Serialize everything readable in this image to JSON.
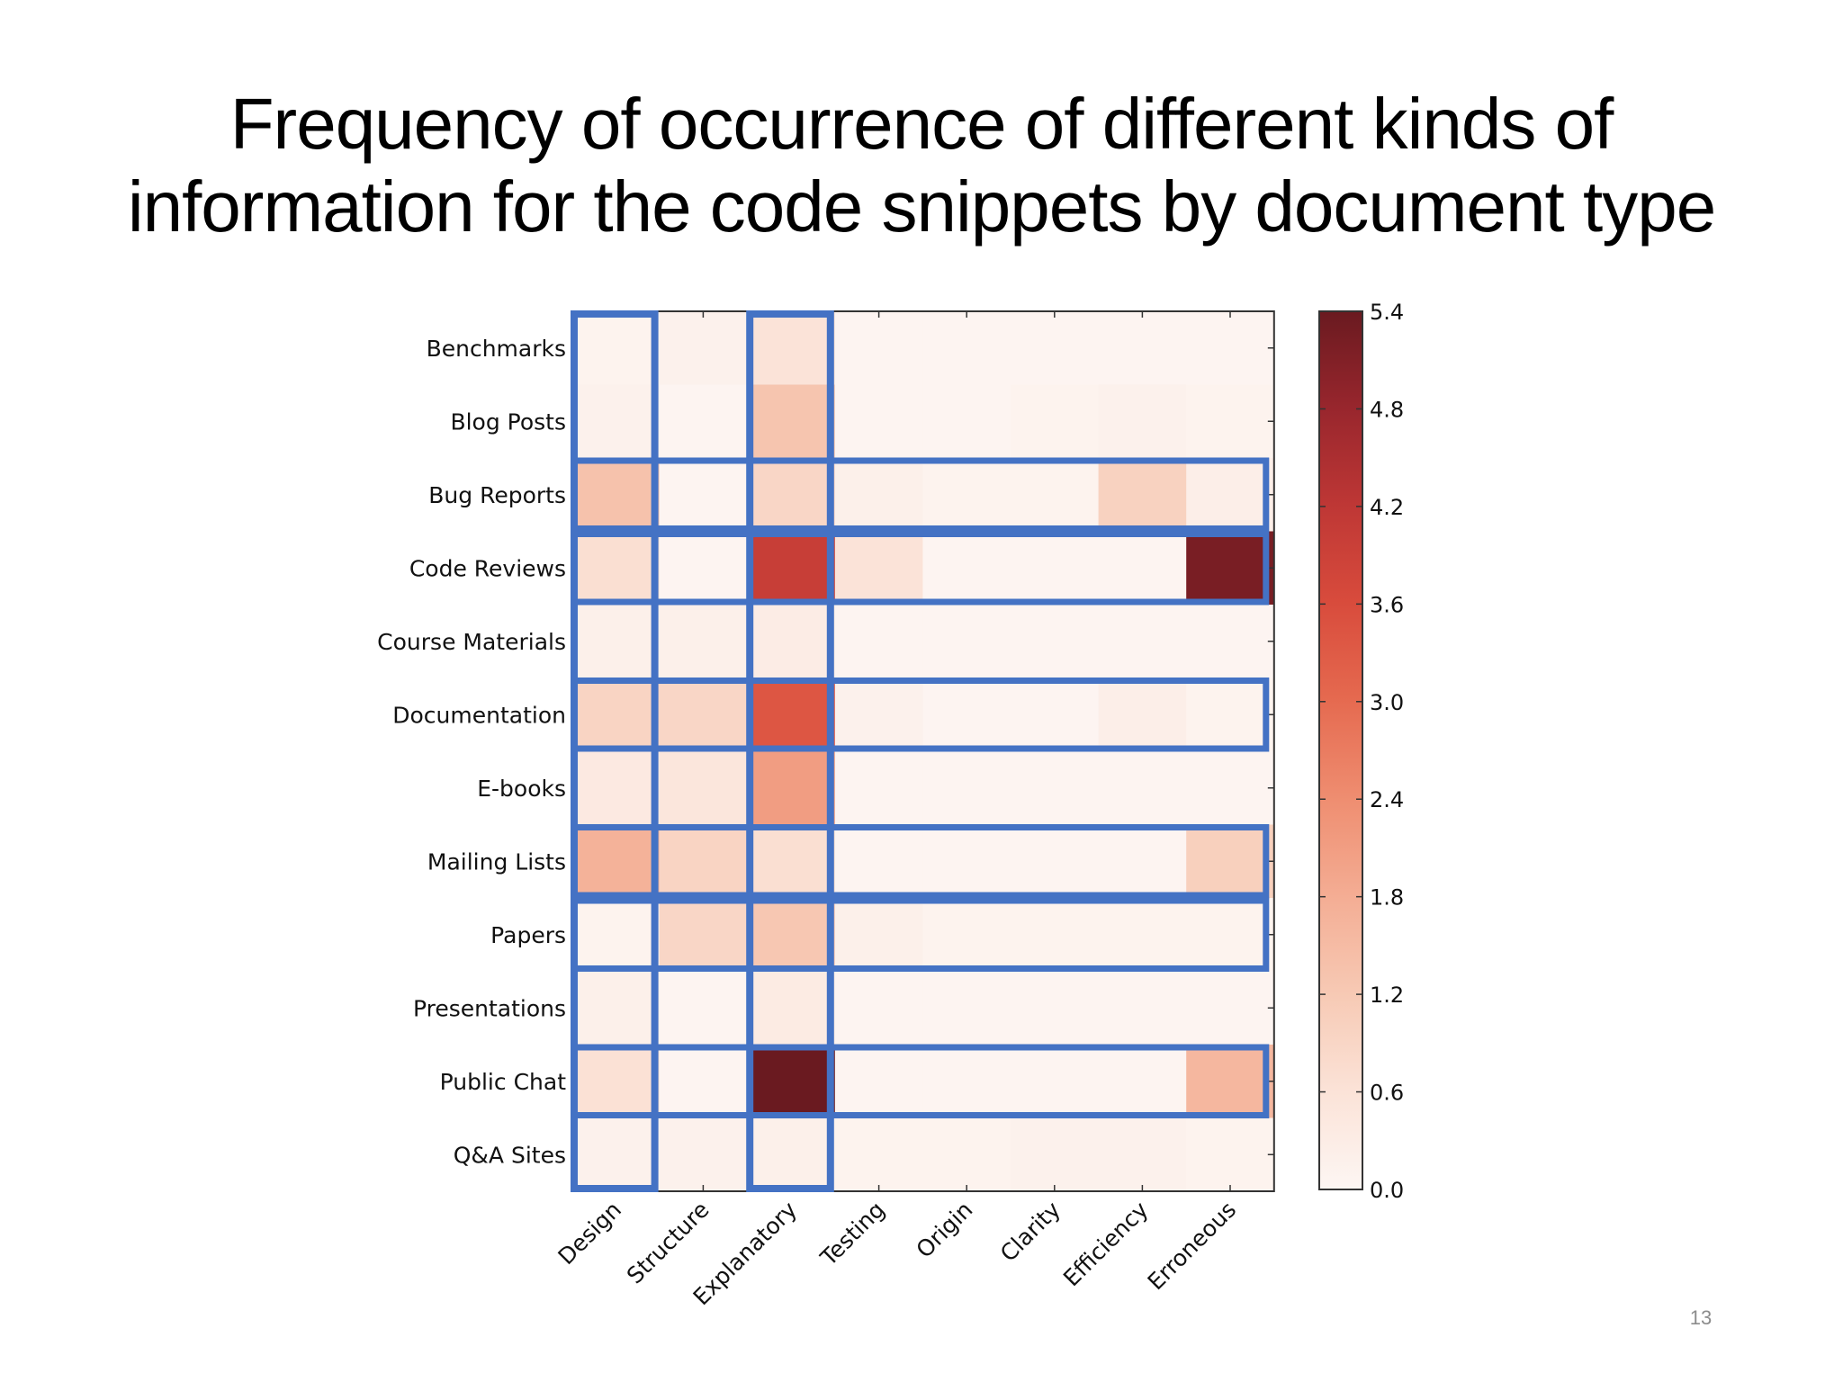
{
  "slide": {
    "title_line1": "Frequency of occurrence of different kinds of",
    "title_line2": "information for the code snippets by document type",
    "page_number": "13"
  },
  "colors": {
    "highlight_box": "#4472c4",
    "colormap_low": "#fdf6f3",
    "colormap_high": "#67000d"
  },
  "chart_data": {
    "type": "heatmap",
    "title": "",
    "xlabel": "",
    "ylabel": "",
    "rows": [
      "Benchmarks",
      "Blog Posts",
      "Bug Reports",
      "Code Reviews",
      "Course Materials",
      "Documentation",
      "E-books",
      "Mailing Lists",
      "Papers",
      "Presentations",
      "Public Chat",
      "Q&A Sites"
    ],
    "columns": [
      "Design",
      "Structure",
      "Explanatory",
      "Testing",
      "Origin",
      "Clarity",
      "Efficiency",
      "Erroneous"
    ],
    "values": [
      [
        0.1,
        0.15,
        0.6,
        0.05,
        0.05,
        0.05,
        0.05,
        0.05
      ],
      [
        0.15,
        0.05,
        1.3,
        0.05,
        0.05,
        0.1,
        0.15,
        0.1
      ],
      [
        1.35,
        0.05,
        0.9,
        0.2,
        0.1,
        0.1,
        1.0,
        0.25
      ],
      [
        0.7,
        0.05,
        4.0,
        0.6,
        0.05,
        0.05,
        0.05,
        5.2
      ],
      [
        0.2,
        0.2,
        0.3,
        0.05,
        0.05,
        0.05,
        0.05,
        0.05
      ],
      [
        0.95,
        0.9,
        3.4,
        0.15,
        0.05,
        0.05,
        0.25,
        0.1
      ],
      [
        0.4,
        0.5,
        2.1,
        0.05,
        0.05,
        0.05,
        0.05,
        0.05
      ],
      [
        1.7,
        0.95,
        0.7,
        0.05,
        0.05,
        0.05,
        0.05,
        1.05
      ],
      [
        0.1,
        0.9,
        1.25,
        0.2,
        0.1,
        0.1,
        0.1,
        0.1
      ],
      [
        0.2,
        0.05,
        0.35,
        0.05,
        0.05,
        0.05,
        0.05,
        0.05
      ],
      [
        0.65,
        0.05,
        5.4,
        0.05,
        0.05,
        0.05,
        0.05,
        1.6
      ],
      [
        0.15,
        0.15,
        0.2,
        0.1,
        0.1,
        0.15,
        0.15,
        0.1
      ]
    ],
    "vmin": 0.0,
    "vmax": 5.4,
    "colorbar_ticks": [
      "0.0",
      "0.6",
      "1.2",
      "1.8",
      "2.4",
      "3.0",
      "3.6",
      "4.2",
      "4.8",
      "5.4"
    ],
    "highlighted_rows": [
      "Bug Reports",
      "Code Reviews",
      "Documentation",
      "Mailing Lists",
      "Papers",
      "Public Chat"
    ],
    "highlighted_columns": [
      "Design",
      "Explanatory"
    ]
  }
}
